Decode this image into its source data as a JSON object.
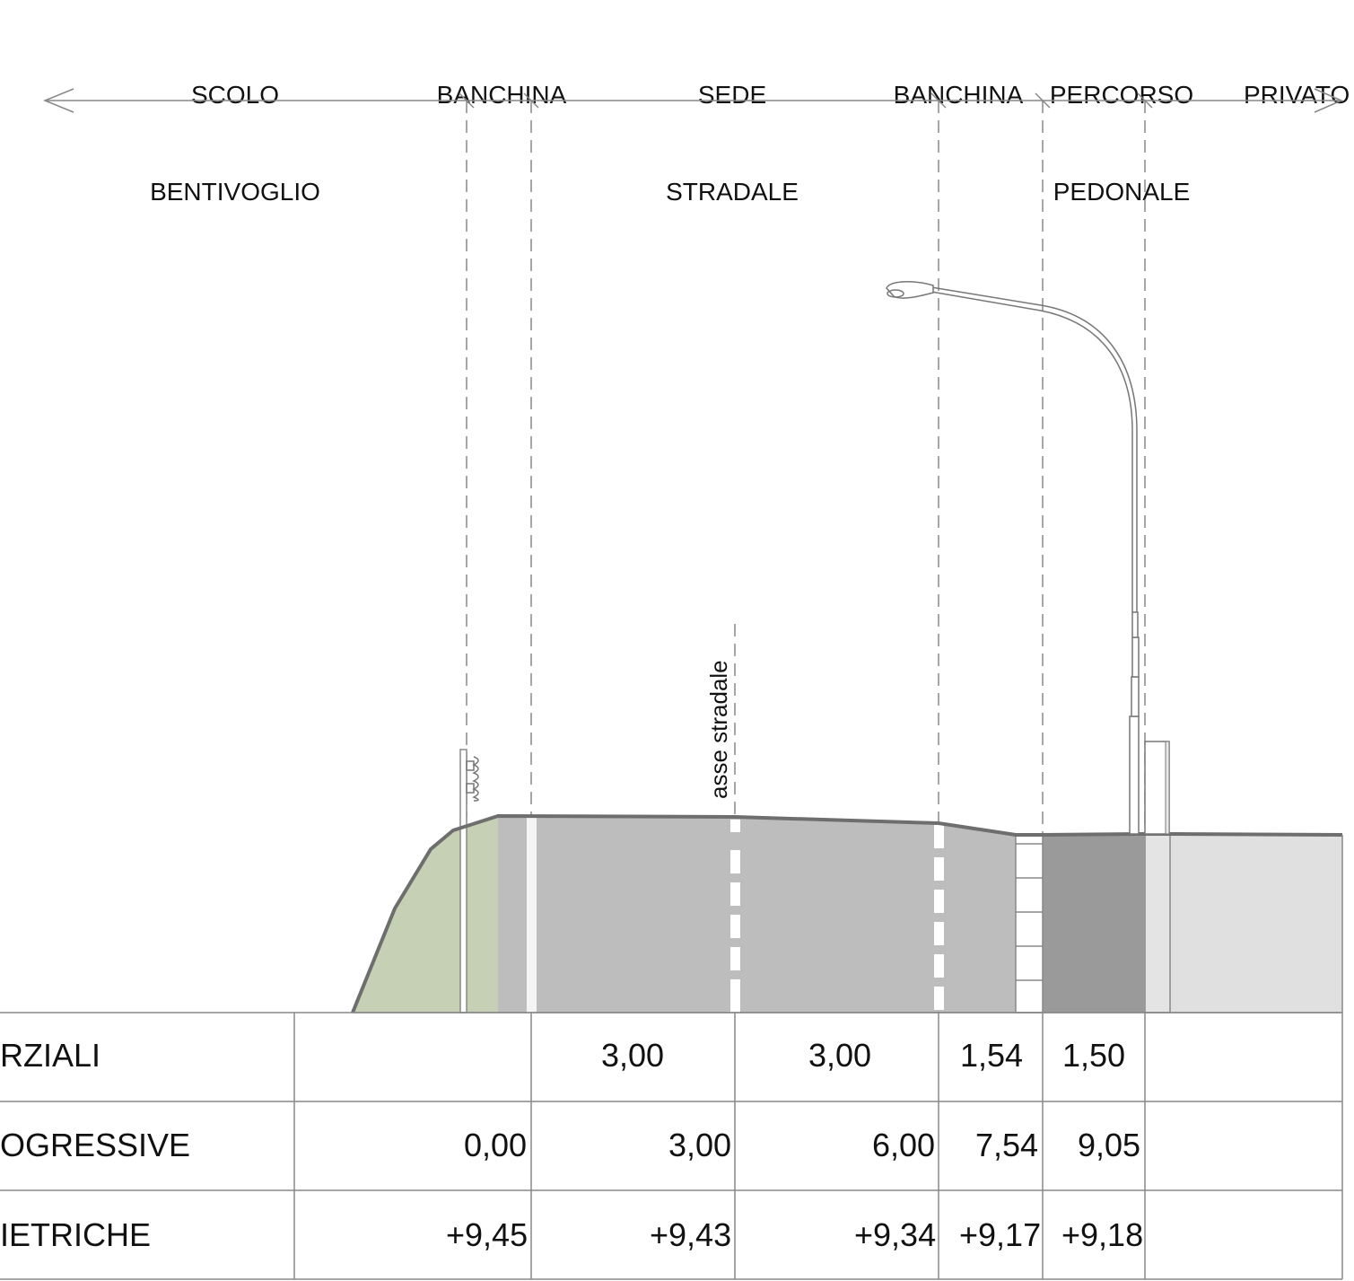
{
  "zones": [
    {
      "id": "scolo",
      "line1": "SCOLO",
      "line2": "BENTIVOGLIO"
    },
    {
      "id": "banchina-left",
      "line1": "BANCHINA",
      "line2": ""
    },
    {
      "id": "sede",
      "line1": "SEDE",
      "line2": "STRADALE"
    },
    {
      "id": "banchina-right",
      "line1": "BANCHINA",
      "line2": ""
    },
    {
      "id": "percorso",
      "line1": "PERCORSO",
      "line2": "PEDONALE"
    },
    {
      "id": "privato",
      "line1": "PRIVATO",
      "line2": ""
    }
  ],
  "axis_label": "asse stradale",
  "table": {
    "rows": [
      {
        "label": "RZIALI",
        "values": [
          "",
          "3,00",
          "3,00",
          "1,54",
          "1,50",
          ""
        ]
      },
      {
        "label": "OGRESSIVE",
        "values": [
          "0,00",
          "3,00",
          "6,00",
          "7,54",
          "9,05",
          ""
        ]
      },
      {
        "label": "IETRICHE",
        "values": [
          "+9,45",
          "+9,43",
          "+9,34",
          "+9,17",
          "+9,18",
          ""
        ]
      }
    ]
  },
  "colors": {
    "embankment": "#c5d0b4",
    "road": "#bdbdbd",
    "sidewalk": "#9a9a9a",
    "private": "#e0e0e0",
    "outline": "#6e6e6e",
    "line": "#888888"
  }
}
